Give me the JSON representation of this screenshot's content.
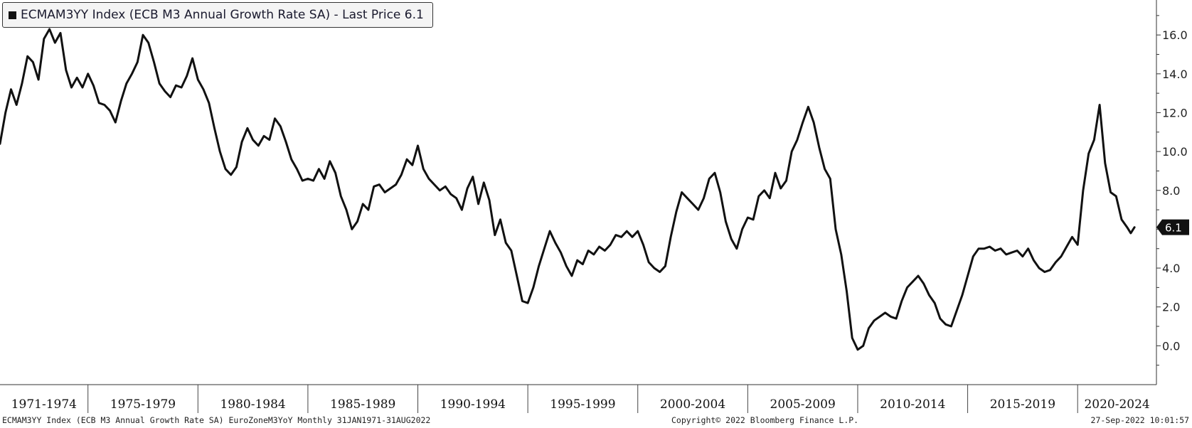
{
  "legend": {
    "swatch_color": "#111111",
    "text": "ECMAM3YY Index (ECB M3 Annual Growth Rate SA) - Last Price 6.1"
  },
  "footer": {
    "left": "ECMAM3YY Index (ECB M3 Annual Growth Rate SA) EuroZoneM3YoY  Monthly 31JAN1971-31AUG2022",
    "center": "Copyright© 2022 Bloomberg Finance L.P.",
    "right": "27-Sep-2022 10:01:57"
  },
  "chart_data": {
    "type": "line",
    "title": "",
    "xlabel": "",
    "ylabel": "",
    "ylim": [
      -2.0,
      17.8
    ],
    "y_axis_position": "right",
    "y_ticks": [
      "16.0",
      "14.0",
      "12.0",
      "10.0",
      "8.0",
      "6.0",
      "4.0",
      "2.0",
      "0.0"
    ],
    "x_period_labels": [
      "1971-1974",
      "1975-1979",
      "1980-1984",
      "1985-1989",
      "1990-1994",
      "1995-1999",
      "2000-2004",
      "2005-2009",
      "2010-2014",
      "2015-2019",
      "2020-2024"
    ],
    "x_range": [
      "1971-01",
      "2023-08"
    ],
    "grid": false,
    "line_color": "#111111",
    "last_value_label": "6.1",
    "series": [
      {
        "values": [
          [
            "1971-01",
            10.4
          ],
          [
            "1971-04",
            12.0
          ],
          [
            "1971-07",
            13.2
          ],
          [
            "1971-10",
            12.4
          ],
          [
            "1972-01",
            13.5
          ],
          [
            "1972-04",
            14.9
          ],
          [
            "1972-07",
            14.6
          ],
          [
            "1972-10",
            13.7
          ],
          [
            "1973-01",
            15.8
          ],
          [
            "1973-04",
            16.3
          ],
          [
            "1973-07",
            15.6
          ],
          [
            "1973-10",
            16.1
          ],
          [
            "1974-01",
            14.2
          ],
          [
            "1974-04",
            13.3
          ],
          [
            "1974-07",
            13.8
          ],
          [
            "1974-10",
            13.3
          ],
          [
            "1975-01",
            14.0
          ],
          [
            "1975-04",
            13.4
          ],
          [
            "1975-07",
            12.5
          ],
          [
            "1975-10",
            12.4
          ],
          [
            "1976-01",
            12.1
          ],
          [
            "1976-04",
            11.5
          ],
          [
            "1976-07",
            12.6
          ],
          [
            "1976-10",
            13.5
          ],
          [
            "1977-01",
            14.0
          ],
          [
            "1977-04",
            14.6
          ],
          [
            "1977-07",
            16.0
          ],
          [
            "1977-10",
            15.6
          ],
          [
            "1978-01",
            14.6
          ],
          [
            "1978-04",
            13.5
          ],
          [
            "1978-07",
            13.1
          ],
          [
            "1978-10",
            12.8
          ],
          [
            "1979-01",
            13.4
          ],
          [
            "1979-04",
            13.3
          ],
          [
            "1979-07",
            13.9
          ],
          [
            "1979-10",
            14.8
          ],
          [
            "1980-01",
            13.7
          ],
          [
            "1980-04",
            13.2
          ],
          [
            "1980-07",
            12.5
          ],
          [
            "1980-10",
            11.2
          ],
          [
            "1981-01",
            10.0
          ],
          [
            "1981-04",
            9.1
          ],
          [
            "1981-07",
            8.8
          ],
          [
            "1981-10",
            9.2
          ],
          [
            "1982-01",
            10.5
          ],
          [
            "1982-04",
            11.2
          ],
          [
            "1982-07",
            10.6
          ],
          [
            "1982-10",
            10.3
          ],
          [
            "1983-01",
            10.8
          ],
          [
            "1983-04",
            10.6
          ],
          [
            "1983-07",
            11.7
          ],
          [
            "1983-10",
            11.3
          ],
          [
            "1984-01",
            10.5
          ],
          [
            "1984-04",
            9.6
          ],
          [
            "1984-07",
            9.1
          ],
          [
            "1984-10",
            8.5
          ],
          [
            "1985-01",
            8.6
          ],
          [
            "1985-04",
            8.5
          ],
          [
            "1985-07",
            9.1
          ],
          [
            "1985-10",
            8.6
          ],
          [
            "1986-01",
            9.5
          ],
          [
            "1986-04",
            8.9
          ],
          [
            "1986-07",
            7.7
          ],
          [
            "1986-10",
            7.0
          ],
          [
            "1987-01",
            6.0
          ],
          [
            "1987-04",
            6.4
          ],
          [
            "1987-07",
            7.3
          ],
          [
            "1987-10",
            7.0
          ],
          [
            "1988-01",
            8.2
          ],
          [
            "1988-04",
            8.3
          ],
          [
            "1988-07",
            7.9
          ],
          [
            "1988-10",
            8.1
          ],
          [
            "1989-01",
            8.3
          ],
          [
            "1989-04",
            8.8
          ],
          [
            "1989-07",
            9.6
          ],
          [
            "1989-10",
            9.3
          ],
          [
            "1990-01",
            10.3
          ],
          [
            "1990-04",
            9.1
          ],
          [
            "1990-07",
            8.6
          ],
          [
            "1990-10",
            8.3
          ],
          [
            "1991-01",
            8.0
          ],
          [
            "1991-04",
            8.2
          ],
          [
            "1991-07",
            7.8
          ],
          [
            "1991-10",
            7.6
          ],
          [
            "1992-01",
            7.0
          ],
          [
            "1992-04",
            8.1
          ],
          [
            "1992-07",
            8.7
          ],
          [
            "1992-10",
            7.3
          ],
          [
            "1993-01",
            8.4
          ],
          [
            "1993-04",
            7.5
          ],
          [
            "1993-07",
            5.7
          ],
          [
            "1993-10",
            6.5
          ],
          [
            "1994-01",
            5.3
          ],
          [
            "1994-04",
            4.9
          ],
          [
            "1994-07",
            3.6
          ],
          [
            "1994-10",
            2.3
          ],
          [
            "1995-01",
            2.2
          ],
          [
            "1995-04",
            3.0
          ],
          [
            "1995-07",
            4.1
          ],
          [
            "1995-10",
            5.0
          ],
          [
            "1996-01",
            5.9
          ],
          [
            "1996-04",
            5.3
          ],
          [
            "1996-07",
            4.8
          ],
          [
            "1996-10",
            4.1
          ],
          [
            "1997-01",
            3.6
          ],
          [
            "1997-04",
            4.4
          ],
          [
            "1997-07",
            4.2
          ],
          [
            "1997-10",
            4.9
          ],
          [
            "1998-01",
            4.7
          ],
          [
            "1998-04",
            5.1
          ],
          [
            "1998-07",
            4.9
          ],
          [
            "1998-10",
            5.2
          ],
          [
            "1999-01",
            5.7
          ],
          [
            "1999-04",
            5.6
          ],
          [
            "1999-07",
            5.9
          ],
          [
            "1999-10",
            5.6
          ],
          [
            "2000-01",
            5.9
          ],
          [
            "2000-04",
            5.2
          ],
          [
            "2000-07",
            4.3
          ],
          [
            "2000-10",
            4.0
          ],
          [
            "2001-01",
            3.8
          ],
          [
            "2001-04",
            4.1
          ],
          [
            "2001-07",
            5.6
          ],
          [
            "2001-10",
            6.9
          ],
          [
            "2002-01",
            7.9
          ],
          [
            "2002-04",
            7.6
          ],
          [
            "2002-07",
            7.3
          ],
          [
            "2002-10",
            7.0
          ],
          [
            "2003-01",
            7.6
          ],
          [
            "2003-04",
            8.6
          ],
          [
            "2003-07",
            8.9
          ],
          [
            "2003-10",
            7.9
          ],
          [
            "2004-01",
            6.4
          ],
          [
            "2004-04",
            5.5
          ],
          [
            "2004-07",
            5.0
          ],
          [
            "2004-10",
            6.0
          ],
          [
            "2005-01",
            6.6
          ],
          [
            "2005-04",
            6.5
          ],
          [
            "2005-07",
            7.7
          ],
          [
            "2005-10",
            8.0
          ],
          [
            "2006-01",
            7.6
          ],
          [
            "2006-04",
            8.9
          ],
          [
            "2006-07",
            8.1
          ],
          [
            "2006-10",
            8.5
          ],
          [
            "2007-01",
            10.0
          ],
          [
            "2007-04",
            10.6
          ],
          [
            "2007-07",
            11.5
          ],
          [
            "2007-10",
            12.3
          ],
          [
            "2008-01",
            11.5
          ],
          [
            "2008-04",
            10.2
          ],
          [
            "2008-07",
            9.1
          ],
          [
            "2008-10",
            8.6
          ],
          [
            "2009-01",
            6.0
          ],
          [
            "2009-04",
            4.7
          ],
          [
            "2009-07",
            2.8
          ],
          [
            "2009-10",
            0.4
          ],
          [
            "2010-01",
            -0.2
          ],
          [
            "2010-04",
            0.0
          ],
          [
            "2010-07",
            0.9
          ],
          [
            "2010-10",
            1.3
          ],
          [
            "2011-01",
            1.5
          ],
          [
            "2011-04",
            1.7
          ],
          [
            "2011-07",
            1.5
          ],
          [
            "2011-10",
            1.4
          ],
          [
            "2012-01",
            2.3
          ],
          [
            "2012-04",
            3.0
          ],
          [
            "2012-07",
            3.3
          ],
          [
            "2012-10",
            3.6
          ],
          [
            "2013-01",
            3.2
          ],
          [
            "2013-04",
            2.6
          ],
          [
            "2013-07",
            2.2
          ],
          [
            "2013-10",
            1.4
          ],
          [
            "2014-01",
            1.1
          ],
          [
            "2014-04",
            1.0
          ],
          [
            "2014-07",
            1.8
          ],
          [
            "2014-10",
            2.6
          ],
          [
            "2015-01",
            3.6
          ],
          [
            "2015-04",
            4.6
          ],
          [
            "2015-07",
            5.0
          ],
          [
            "2015-10",
            5.0
          ],
          [
            "2016-01",
            5.1
          ],
          [
            "2016-04",
            4.9
          ],
          [
            "2016-07",
            5.0
          ],
          [
            "2016-10",
            4.7
          ],
          [
            "2017-01",
            4.8
          ],
          [
            "2017-04",
            4.9
          ],
          [
            "2017-07",
            4.6
          ],
          [
            "2017-10",
            5.0
          ],
          [
            "2018-01",
            4.4
          ],
          [
            "2018-04",
            4.0
          ],
          [
            "2018-07",
            3.8
          ],
          [
            "2018-10",
            3.9
          ],
          [
            "2019-01",
            4.3
          ],
          [
            "2019-04",
            4.6
          ],
          [
            "2019-07",
            5.1
          ],
          [
            "2019-10",
            5.6
          ],
          [
            "2020-01",
            5.2
          ],
          [
            "2020-04",
            8.0
          ],
          [
            "2020-07",
            9.9
          ],
          [
            "2020-10",
            10.6
          ],
          [
            "2021-01",
            12.4
          ],
          [
            "2021-04",
            9.4
          ],
          [
            "2021-07",
            7.9
          ],
          [
            "2021-10",
            7.7
          ],
          [
            "2022-01",
            6.5
          ],
          [
            "2022-04",
            6.1
          ],
          [
            "2022-06",
            5.8
          ],
          [
            "2022-08",
            6.1
          ]
        ]
      }
    ]
  }
}
